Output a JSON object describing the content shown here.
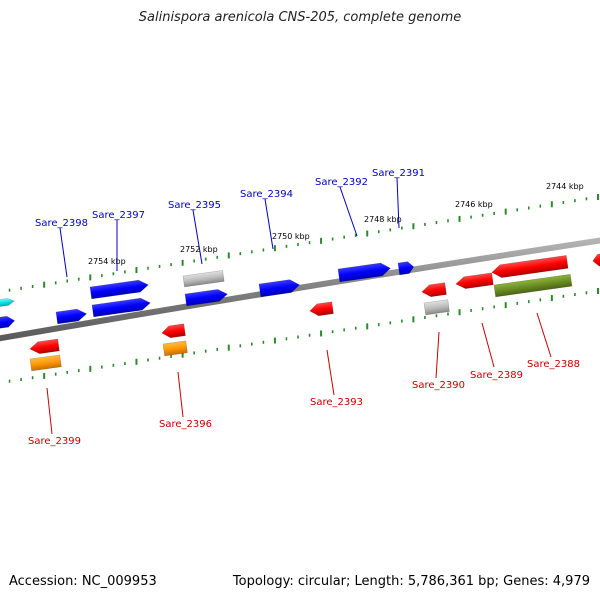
{
  "title": "Salinispora arenicola CNS-205, complete genome",
  "footer": {
    "accession": "Accession: NC_009953",
    "summary": "Topology: circular; Length: 5,786,361 bp; Genes: 4,979"
  },
  "colors": {
    "backbone": "#8c8c8c",
    "forward_gene": "#0000ff",
    "reverse_gene": "#ff0000",
    "grey_feature": "#bbbbbb",
    "orange_feature": "#ff9900",
    "olive_feature": "#6b8e23",
    "cyan_feature": "#00e5e5",
    "tick": "#2a8a2a",
    "forward_label": "#0000c8",
    "reverse_label": "#c80000"
  },
  "scale_labels": [
    "2754 kbp",
    "2752 kbp",
    "2750 kbp",
    "2748 kbp",
    "2746 kbp",
    "2744 kbp"
  ],
  "forward_genes": [
    "Sare_2398",
    "Sare_2397",
    "Sare_2395",
    "Sare_2394",
    "Sare_2392",
    "Sare_2391"
  ],
  "reverse_genes": [
    "Sare_2399",
    "Sare_2396",
    "Sare_2393",
    "Sare_2390",
    "Sare_2389",
    "Sare_2388"
  ]
}
